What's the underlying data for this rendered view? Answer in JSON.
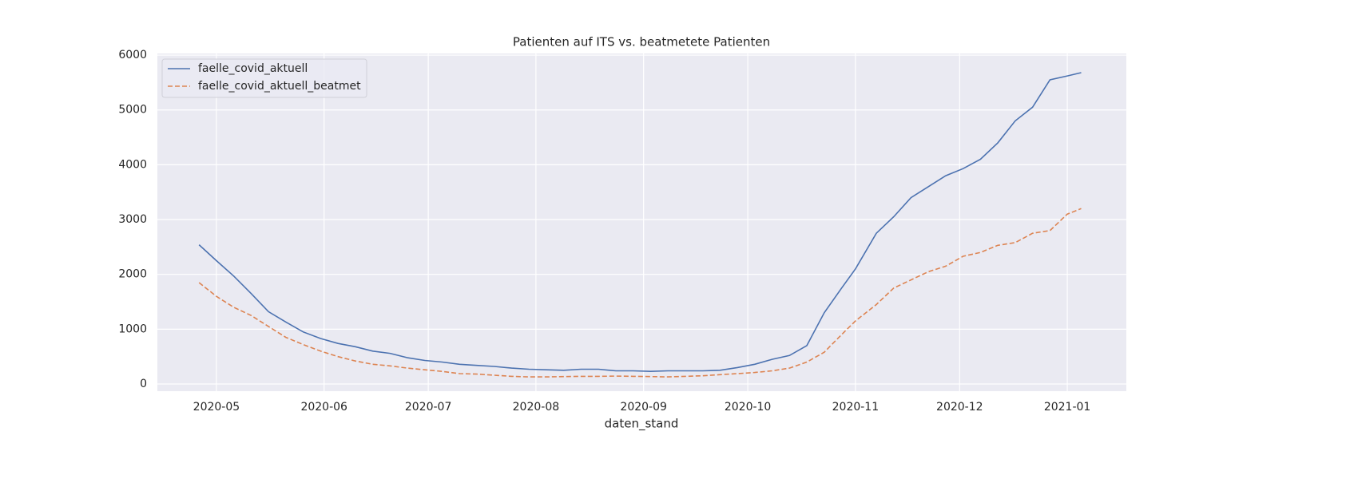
{
  "chart_data": {
    "type": "line",
    "title": "Patienten auf ITS vs. beatmetete Patienten",
    "x_label": "daten_stand",
    "x": [
      -5,
      0,
      5,
      10,
      15,
      20,
      25,
      30,
      35,
      40,
      45,
      50,
      55,
      60,
      65,
      70,
      75,
      80,
      85,
      90,
      95,
      100,
      105,
      110,
      115,
      120,
      125,
      130,
      135,
      140,
      145,
      150,
      155,
      160,
      165,
      170,
      175,
      180,
      184,
      190,
      195,
      200,
      205,
      210,
      215,
      220,
      225,
      230,
      235,
      240,
      245,
      249
    ],
    "series": [
      {
        "name": "faelle_covid_aktuell",
        "color": "#4c72b0",
        "linestyle": "solid",
        "values": [
          2540,
          2250,
          1970,
          1650,
          1320,
          1130,
          950,
          830,
          740,
          680,
          600,
          560,
          480,
          430,
          400,
          360,
          340,
          320,
          290,
          270,
          260,
          250,
          270,
          270,
          240,
          240,
          230,
          240,
          240,
          240,
          250,
          300,
          360,
          450,
          520,
          700,
          1300,
          1750,
          2100,
          2750,
          3050,
          3400,
          3600,
          3800,
          3930,
          4100,
          4400,
          4800,
          5050,
          5550,
          5620,
          5680
        ]
      },
      {
        "name": "faelle_covid_aktuell_beatmet",
        "color": "#dd8452",
        "linestyle": "dashed",
        "values": [
          1850,
          1600,
          1400,
          1250,
          1050,
          850,
          720,
          600,
          500,
          420,
          360,
          330,
          290,
          260,
          230,
          190,
          180,
          160,
          140,
          130,
          130,
          135,
          140,
          140,
          145,
          140,
          135,
          130,
          140,
          150,
          170,
          190,
          210,
          240,
          290,
          400,
          580,
          900,
          1150,
          1450,
          1750,
          1900,
          2050,
          2150,
          2330,
          2400,
          2530,
          2580,
          2750,
          2800,
          3100,
          3200
        ]
      }
    ],
    "xlim": [
      -17,
      262
    ],
    "xticks": [
      {
        "value": 0,
        "label": "2020-05"
      },
      {
        "value": 31,
        "label": "2020-06"
      },
      {
        "value": 61,
        "label": "2020-07"
      },
      {
        "value": 92,
        "label": "2020-08"
      },
      {
        "value": 123,
        "label": "2020-09"
      },
      {
        "value": 153,
        "label": "2020-10"
      },
      {
        "value": 184,
        "label": "2020-11"
      },
      {
        "value": 214,
        "label": "2020-12"
      },
      {
        "value": 245,
        "label": "2021-01"
      }
    ],
    "ylim": [
      -131,
      6030
    ],
    "yticks": [
      0,
      1000,
      2000,
      3000,
      4000,
      5000,
      6000
    ],
    "grid": true,
    "legend": "upper left"
  }
}
